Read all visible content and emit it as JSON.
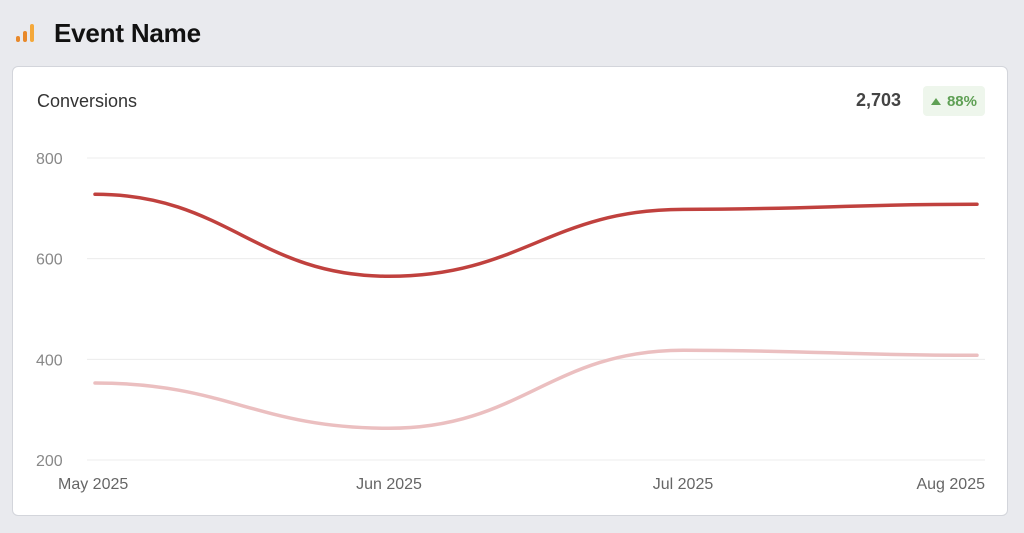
{
  "header": {
    "title": "Event Name",
    "icon": "bar-chart-icon",
    "icon_color": "#e8892b"
  },
  "card": {
    "title": "Conversions",
    "total": "2,703",
    "change": "88%",
    "change_direction": "up",
    "change_color": "#5fa055"
  },
  "chart_data": {
    "type": "line",
    "categories": [
      "May 2025",
      "Jun 2025",
      "Jul 2025",
      "Aug 2025"
    ],
    "ylim": [
      200,
      800
    ],
    "yticks": [
      200,
      400,
      600,
      800
    ],
    "grid": true,
    "series": [
      {
        "values": [
          728,
          565,
          698,
          708
        ],
        "color": "#c0413e"
      },
      {
        "values": [
          353,
          263,
          418,
          408
        ],
        "color": "#ebbfc0"
      }
    ]
  }
}
